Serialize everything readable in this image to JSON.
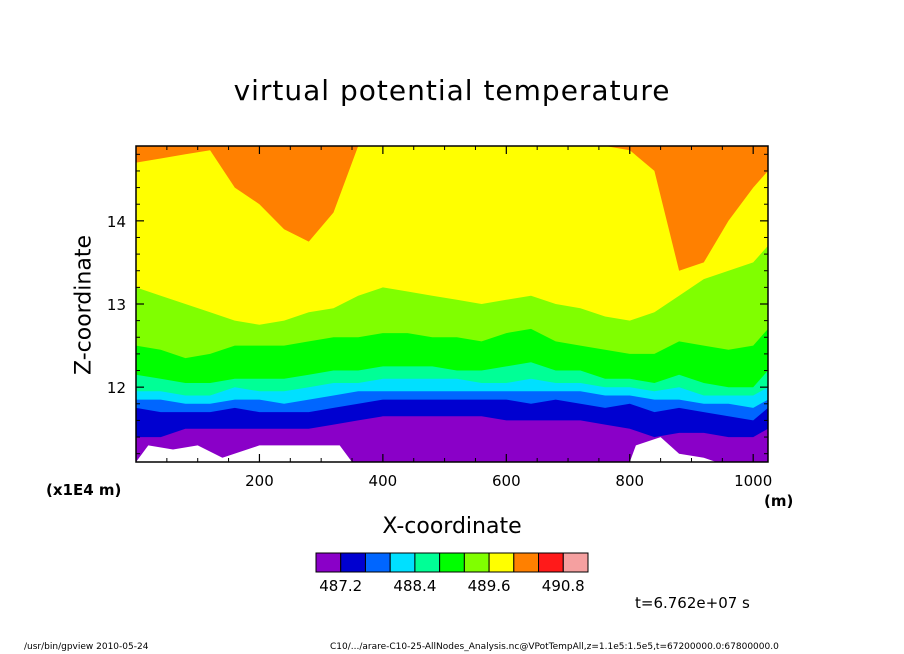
{
  "chart_data": {
    "type": "heatmap",
    "title": "virtual potential temperature",
    "xlabel": "X-coordinate",
    "ylabel": "Z-coordinate",
    "x_unit": "(m)",
    "y_scale_note": "(x1E4 m)",
    "xlim": [
      0,
      1024
    ],
    "ylim": [
      11.1,
      14.9
    ],
    "x_ticks": [
      200,
      400,
      600,
      800,
      1000
    ],
    "y_ticks": [
      12,
      13,
      14
    ],
    "colorbar": {
      "colors": [
        "#8a00c8",
        "#0000d0",
        "#0066ff",
        "#00e0ff",
        "#00ff96",
        "#00ff00",
        "#80ff00",
        "#ffff00",
        "#ff8000",
        "#ff1a1a",
        "#f5a0a0"
      ],
      "tick_labels": [
        "487.2",
        "488.4",
        "489.6",
        "490.8"
      ]
    },
    "boundaries_z": {
      "x": [
        0,
        40,
        80,
        120,
        160,
        200,
        240,
        280,
        320,
        360,
        400,
        440,
        480,
        520,
        560,
        600,
        640,
        680,
        720,
        760,
        800,
        840,
        880,
        920,
        960,
        1000,
        1024
      ],
      "purple_top": [
        11.4,
        11.4,
        11.5,
        11.5,
        11.5,
        11.5,
        11.5,
        11.5,
        11.55,
        11.6,
        11.65,
        11.65,
        11.65,
        11.65,
        11.65,
        11.6,
        11.6,
        11.6,
        11.6,
        11.55,
        11.5,
        11.4,
        11.45,
        11.45,
        11.4,
        11.4,
        11.5
      ],
      "blue_top": [
        11.75,
        11.7,
        11.7,
        11.7,
        11.75,
        11.7,
        11.7,
        11.7,
        11.75,
        11.8,
        11.85,
        11.85,
        11.85,
        11.85,
        11.85,
        11.85,
        11.8,
        11.85,
        11.8,
        11.75,
        11.8,
        11.7,
        11.75,
        11.7,
        11.65,
        11.6,
        11.75
      ],
      "mid_blue_top": [
        11.85,
        11.85,
        11.8,
        11.8,
        11.85,
        11.85,
        11.8,
        11.85,
        11.9,
        11.95,
        11.95,
        11.95,
        11.95,
        11.95,
        11.95,
        11.95,
        11.95,
        11.95,
        11.95,
        11.9,
        11.9,
        11.85,
        11.85,
        11.8,
        11.8,
        11.75,
        11.85
      ],
      "cyan_top": [
        11.95,
        11.95,
        11.9,
        11.9,
        12.0,
        11.95,
        11.95,
        12.0,
        12.05,
        12.05,
        12.1,
        12.1,
        12.1,
        12.1,
        12.05,
        12.05,
        12.1,
        12.05,
        12.05,
        12.0,
        12.0,
        11.95,
        12.0,
        11.9,
        11.9,
        11.9,
        12.0
      ],
      "teal_top": [
        12.15,
        12.1,
        12.05,
        12.05,
        12.1,
        12.1,
        12.1,
        12.15,
        12.2,
        12.2,
        12.25,
        12.25,
        12.25,
        12.2,
        12.2,
        12.25,
        12.3,
        12.2,
        12.2,
        12.1,
        12.1,
        12.05,
        12.15,
        12.05,
        12.0,
        12.0,
        12.2
      ],
      "green_top": [
        12.5,
        12.45,
        12.35,
        12.4,
        12.5,
        12.5,
        12.5,
        12.55,
        12.6,
        12.6,
        12.65,
        12.65,
        12.6,
        12.6,
        12.55,
        12.65,
        12.7,
        12.55,
        12.5,
        12.45,
        12.4,
        12.4,
        12.55,
        12.5,
        12.45,
        12.5,
        12.7
      ],
      "lime_top": [
        13.2,
        13.1,
        13.0,
        12.9,
        12.8,
        12.75,
        12.8,
        12.9,
        12.95,
        13.1,
        13.2,
        13.15,
        13.1,
        13.05,
        13.0,
        13.05,
        13.1,
        13.0,
        12.95,
        12.85,
        12.8,
        12.9,
        13.1,
        13.3,
        13.4,
        13.5,
        13.7
      ],
      "yellow_top": [
        14.7,
        14.75,
        14.8,
        14.85,
        14.4,
        14.2,
        13.9,
        13.75,
        14.1,
        14.9,
        14.9,
        14.9,
        14.9,
        14.9,
        14.9,
        14.9,
        14.9,
        14.9,
        14.9,
        14.9,
        14.85,
        14.6,
        13.4,
        13.5,
        14.0,
        14.4,
        14.6
      ],
      "orange_top": [
        14.9,
        14.9,
        14.9,
        14.9,
        14.9,
        14.9,
        14.9,
        14.9,
        14.9,
        14.9,
        14.9,
        14.9,
        14.9,
        14.9,
        14.9,
        14.9,
        14.9,
        14.9,
        14.9,
        14.9,
        14.9,
        14.9,
        14.9,
        14.9,
        14.9,
        14.9,
        14.9
      ]
    },
    "grid": false,
    "legend": "colorbar-bottom"
  },
  "annotations": {
    "time": "t=6.762e+07 s",
    "footer_left": "/usr/bin/gpview   2010-05-24",
    "footer_right": "C10/.../arare-C10-25-AllNodes_Analysis.nc@VPotTempAll,z=1.1e5:1.5e5,t=67200000.0:67800000.0"
  }
}
